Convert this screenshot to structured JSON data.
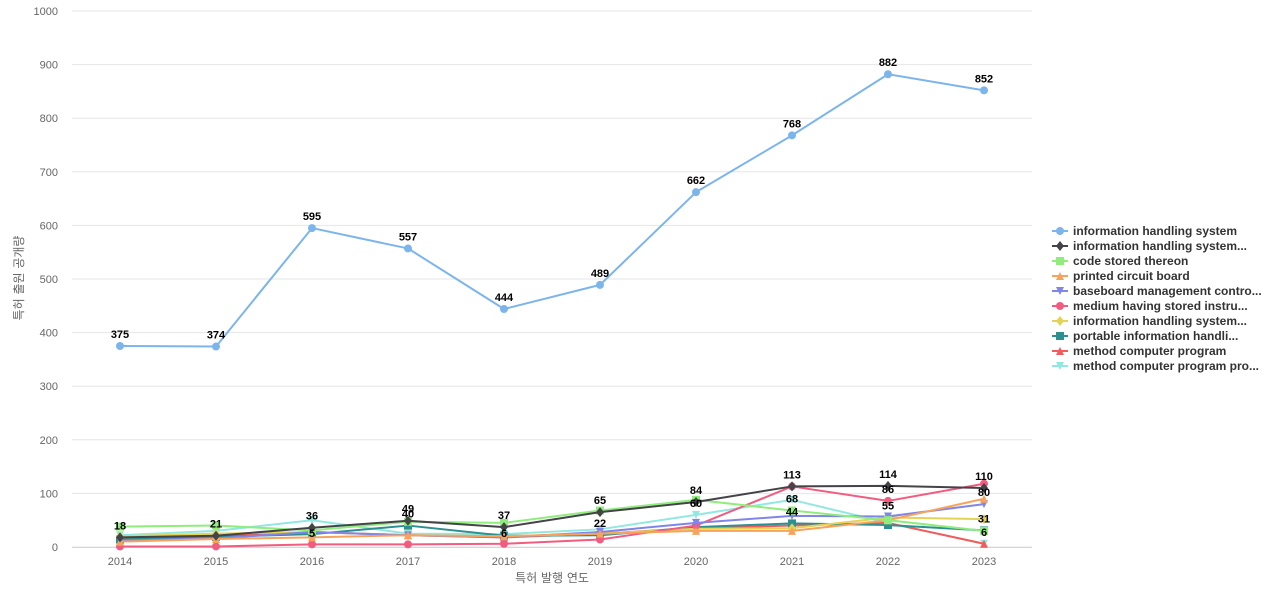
{
  "chart_data": {
    "type": "line",
    "xlabel": "특허 발행 연도",
    "ylabel": "특허 출원 공개량",
    "ylim": [
      0,
      1000
    ],
    "yticks": [
      0,
      100,
      200,
      300,
      400,
      500,
      600,
      700,
      800,
      900,
      1000
    ],
    "x": [
      "2014",
      "2015",
      "2016",
      "2017",
      "2018",
      "2019",
      "2020",
      "2021",
      "2022",
      "2023"
    ],
    "grid": true,
    "legend_position": "right",
    "series": [
      {
        "name": "information handling system",
        "color": "#7cb5ec",
        "marker": "circle",
        "values": [
          375,
          374,
          595,
          557,
          444,
          489,
          662,
          768,
          882,
          852
        ],
        "labels": [
          true,
          true,
          true,
          true,
          true,
          true,
          true,
          true,
          true,
          true
        ]
      },
      {
        "name": "information handling system...",
        "color": "#434348",
        "marker": "diamond",
        "values": [
          18,
          21,
          36,
          49,
          37,
          65,
          84,
          113,
          114,
          110
        ],
        "labels": [
          true,
          true,
          true,
          true,
          true,
          true,
          true,
          true,
          true,
          true
        ]
      },
      {
        "name": "code stored thereon",
        "color": "#90ed7d",
        "marker": "square",
        "values": [
          38,
          40,
          31,
          47,
          45,
          68,
          88,
          68,
          50,
          30
        ],
        "labels": [
          false,
          false,
          false,
          false,
          false,
          false,
          false,
          true,
          false,
          false
        ]
      },
      {
        "name": "printed circuit board",
        "color": "#f7a35c",
        "marker": "triangle",
        "values": [
          10,
          15,
          18,
          22,
          20,
          25,
          30,
          30,
          50,
          90
        ],
        "labels": [
          false,
          false,
          false,
          false,
          false,
          false,
          false,
          false,
          false,
          false
        ]
      },
      {
        "name": "baseboard management contro...",
        "color": "#8085e9",
        "marker": "triangle-down",
        "values": [
          12,
          16,
          28,
          22,
          18,
          28,
          45,
          58,
          57,
          80
        ],
        "labels": [
          false,
          false,
          false,
          false,
          false,
          false,
          false,
          false,
          false,
          true
        ]
      },
      {
        "name": "medium having stored instru...",
        "color": "#f15c80",
        "marker": "circle",
        "values": [
          1,
          1,
          5,
          5,
          6,
          14,
          40,
          113,
          86,
          118
        ],
        "labels": [
          false,
          false,
          false,
          false,
          false,
          false,
          false,
          false,
          true,
          false
        ]
      },
      {
        "name": "information handling system...",
        "color": "#e4d354",
        "marker": "diamond",
        "values": [
          20,
          25,
          28,
          22,
          20,
          25,
          34,
          35,
          55,
          52
        ],
        "labels": [
          false,
          false,
          false,
          false,
          false,
          false,
          false,
          false,
          true,
          false
        ]
      },
      {
        "name": "portable information handli...",
        "color": "#2b908f",
        "marker": "square",
        "values": [
          14,
          19,
          24,
          40,
          21,
          22,
          37,
          44,
          41,
          31
        ],
        "labels": [
          false,
          false,
          false,
          true,
          false,
          true,
          false,
          true,
          false,
          true
        ]
      },
      {
        "name": "method computer program",
        "color": "#f45b5b",
        "marker": "triangle",
        "values": [
          15,
          20,
          28,
          22,
          18,
          25,
          35,
          40,
          45,
          6
        ],
        "labels": [
          false,
          false,
          false,
          false,
          false,
          false,
          false,
          false,
          false,
          false
        ]
      },
      {
        "name": "method computer program pro...",
        "color": "#91e8e1",
        "marker": "triangle-down",
        "values": [
          22,
          30,
          50,
          25,
          24,
          33,
          60,
          88,
          45,
          6
        ],
        "labels": [
          false,
          false,
          false,
          false,
          false,
          false,
          true,
          false,
          false,
          true
        ]
      }
    ],
    "extra_labels": [
      {
        "x": "2016",
        "text": "5"
      },
      {
        "x": "2018",
        "text": "6"
      }
    ]
  }
}
